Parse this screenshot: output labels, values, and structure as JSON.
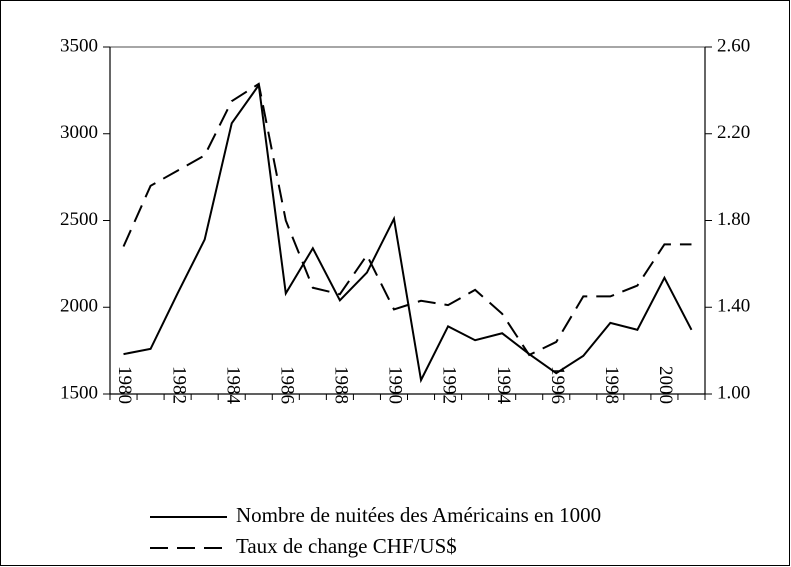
{
  "chart_data": {
    "type": "line",
    "categories": [
      "1980",
      null,
      "1982",
      null,
      "1984",
      null,
      "1986",
      null,
      "1988",
      null,
      "1990",
      null,
      "1992",
      null,
      "1994",
      null,
      "1996",
      null,
      "1998",
      null,
      "2000",
      null
    ],
    "series": [
      {
        "name": "Nombre de nuitées des Américains en 1000",
        "color": "#000000",
        "line_style": "solid",
        "axis": "y",
        "values": [
          1730,
          1760,
          2080,
          2390,
          3060,
          3280,
          2080,
          2340,
          2040,
          2200,
          2510,
          1580,
          1890,
          1810,
          1850,
          1730,
          1620,
          1720,
          1910,
          1870,
          2170,
          1870
        ]
      },
      {
        "name": "Taux de change CHF/US$",
        "color": "#000000",
        "line_style": "dashed",
        "axis": "y2",
        "values": [
          1.68,
          1.96,
          2.03,
          2.1,
          2.35,
          2.43,
          1.8,
          1.49,
          1.46,
          1.64,
          1.39,
          1.43,
          1.41,
          1.48,
          1.37,
          1.18,
          1.24,
          1.45,
          1.45,
          1.5,
          1.69,
          1.69
        ]
      }
    ],
    "ylim": [
      1500,
      3500
    ],
    "yticks": [
      1500,
      2000,
      2500,
      3000,
      3500
    ],
    "y2lim": [
      1.0,
      2.6
    ],
    "y2ticks": [
      {
        "value": 1.0,
        "label": "1.00"
      },
      {
        "value": 1.4,
        "label": "1.40"
      },
      {
        "value": 1.8,
        "label": "1.80"
      },
      {
        "value": 2.2,
        "label": "2.20"
      },
      {
        "value": 2.6,
        "label": "2.60"
      }
    ],
    "legend": "bottom"
  }
}
